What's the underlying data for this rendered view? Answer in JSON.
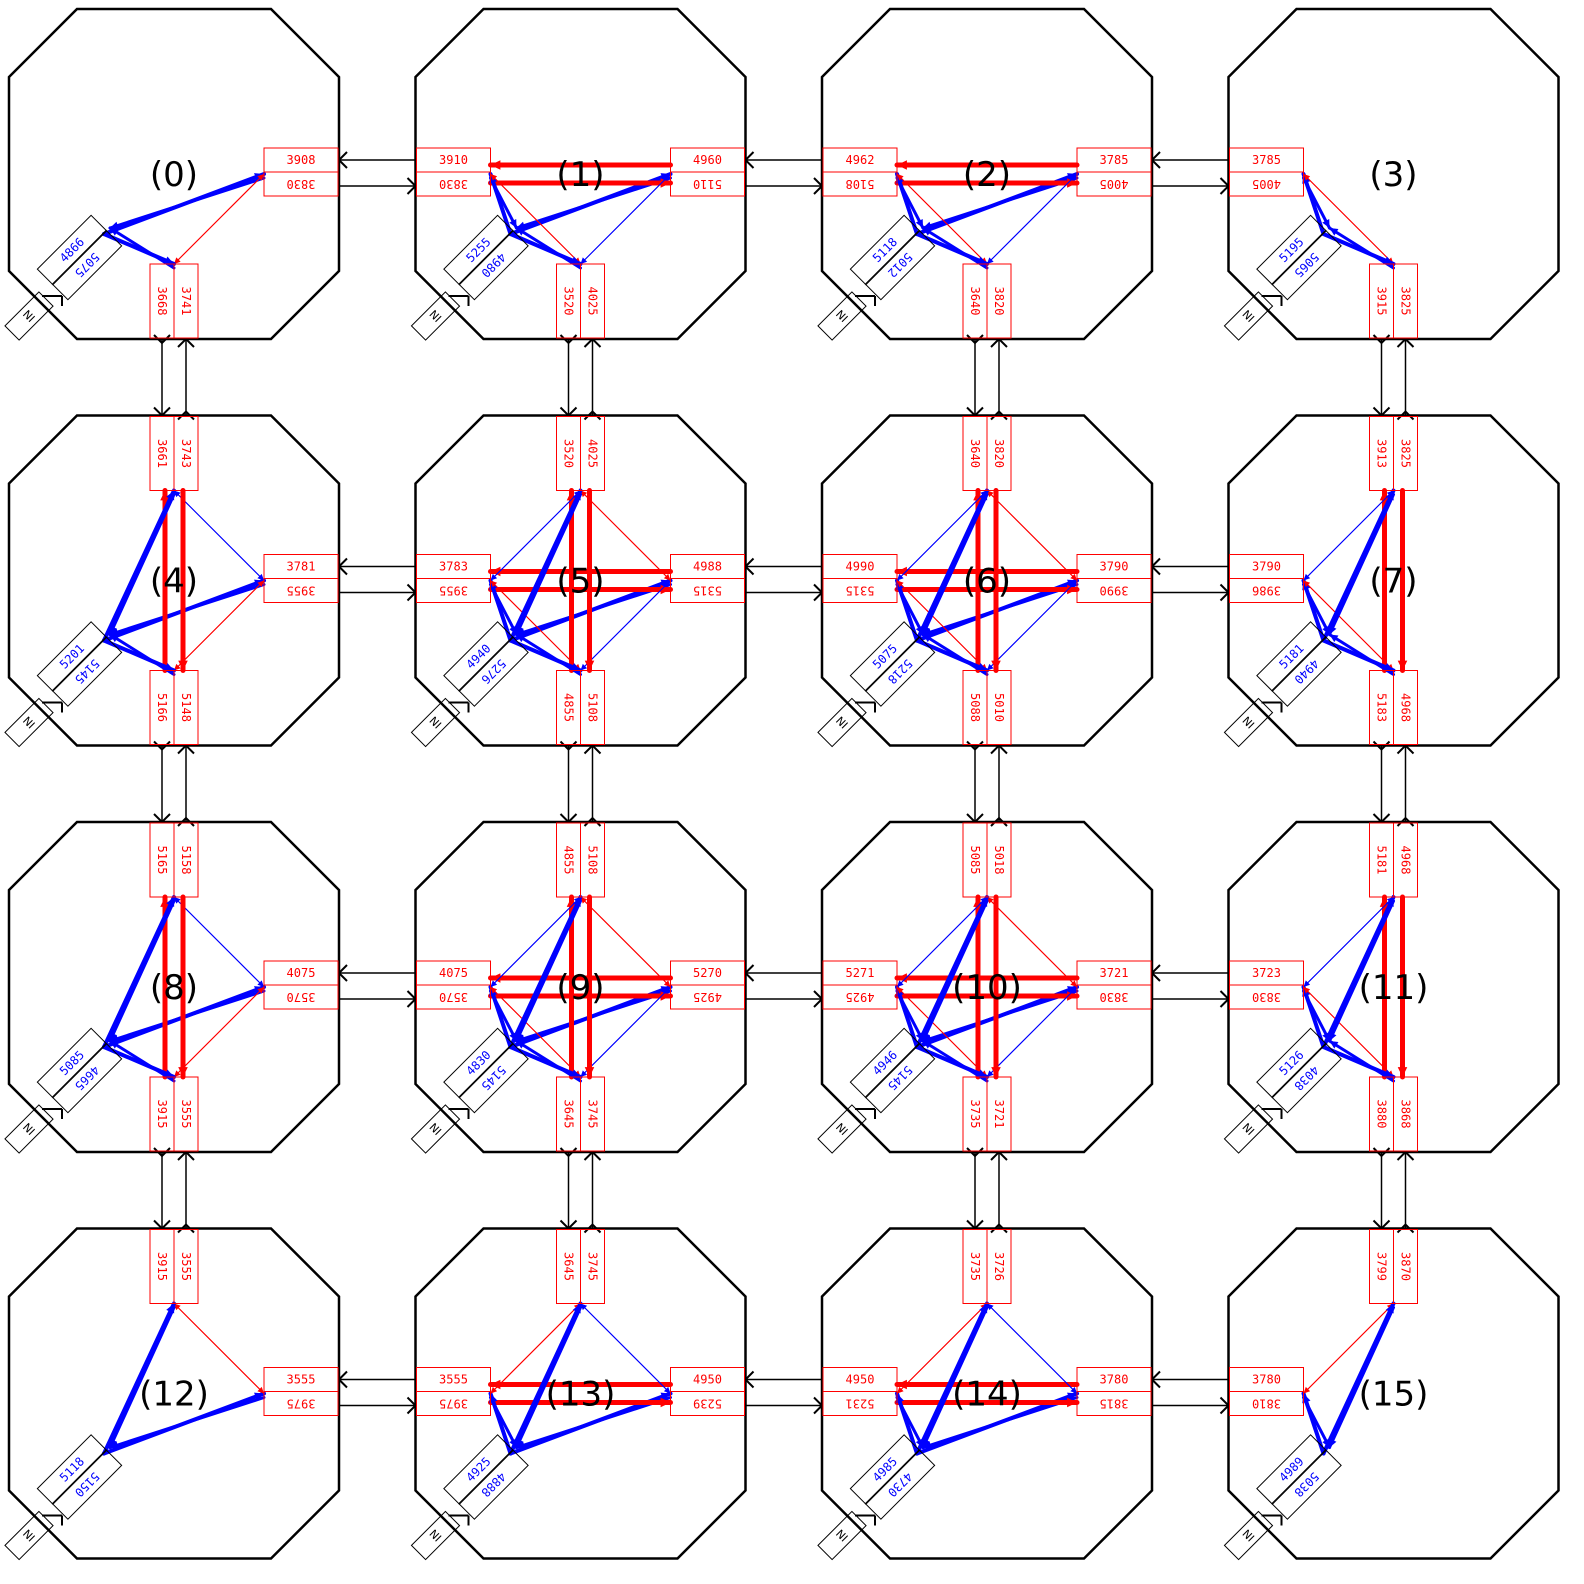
{
  "grid": {
    "rows": 4,
    "cols": 4
  },
  "routers": [
    {
      "id": 0,
      "label": "(0)",
      "east": [
        "3908",
        "3830"
      ],
      "south": [
        "3668",
        "3741"
      ],
      "local": [
        "4866",
        "5075"
      ],
      "north": null,
      "west": null
    },
    {
      "id": 1,
      "label": "(1)",
      "west": [
        "3910",
        "3830"
      ],
      "east": [
        "4960",
        "5110"
      ],
      "south": [
        "3520",
        "4025"
      ],
      "local": [
        "5255",
        "4980"
      ],
      "north": null
    },
    {
      "id": 2,
      "label": "(2)",
      "west": [
        "4962",
        "5108"
      ],
      "east": [
        "3785",
        "4005"
      ],
      "south": [
        "3640",
        "3820"
      ],
      "local": [
        "5118",
        "5012"
      ],
      "north": null
    },
    {
      "id": 3,
      "label": "(3)",
      "west": [
        "3785",
        "4005"
      ],
      "south": [
        "3915",
        "3825"
      ],
      "local": [
        "5195",
        "5065"
      ],
      "north": null,
      "east": null
    },
    {
      "id": 4,
      "label": "(4)",
      "north": [
        "3661",
        "3743"
      ],
      "east": [
        "3781",
        "3955"
      ],
      "south": [
        "5166",
        "5148"
      ],
      "local": [
        "5201",
        "5145"
      ],
      "west": null
    },
    {
      "id": 5,
      "label": "(5)",
      "north": [
        "3520",
        "4025"
      ],
      "west": [
        "3783",
        "3955"
      ],
      "east": [
        "4988",
        "5315"
      ],
      "south": [
        "4855",
        "5108"
      ],
      "local": [
        "4940",
        "5276"
      ]
    },
    {
      "id": 6,
      "label": "(6)",
      "north": [
        "3640",
        "3820"
      ],
      "west": [
        "4990",
        "5315"
      ],
      "east": [
        "3790",
        "3990"
      ],
      "south": [
        "5088",
        "5010"
      ],
      "local": [
        "5075",
        "5218"
      ]
    },
    {
      "id": 7,
      "label": "(7)",
      "north": [
        "3913",
        "3825"
      ],
      "west": [
        "3790",
        "3986"
      ],
      "south": [
        "5183",
        "4968"
      ],
      "local": [
        "5181",
        "4940"
      ],
      "east": null
    },
    {
      "id": 8,
      "label": "(8)",
      "north": [
        "5165",
        "5158"
      ],
      "east": [
        "4075",
        "3570"
      ],
      "south": [
        "3915",
        "3555"
      ],
      "local": [
        "5085",
        "4665"
      ],
      "west": null
    },
    {
      "id": 9,
      "label": "(9)",
      "north": [
        "4855",
        "5108"
      ],
      "west": [
        "4075",
        "3570"
      ],
      "east": [
        "5270",
        "4925"
      ],
      "south": [
        "3645",
        "3745"
      ],
      "local": [
        "4830",
        "5145"
      ]
    },
    {
      "id": 10,
      "label": "(10)",
      "north": [
        "5085",
        "5018"
      ],
      "west": [
        "5271",
        "4925"
      ],
      "east": [
        "3721",
        "3830"
      ],
      "south": [
        "3735",
        "3721"
      ],
      "local": [
        "4946",
        "5145"
      ]
    },
    {
      "id": 11,
      "label": "(11)",
      "north": [
        "5181",
        "4968"
      ],
      "west": [
        "3723",
        "3830"
      ],
      "south": [
        "3880",
        "3868"
      ],
      "local": [
        "5126",
        "4038"
      ],
      "east": null
    },
    {
      "id": 12,
      "label": "(12)",
      "north": [
        "3915",
        "3555"
      ],
      "east": [
        "3555",
        "3975"
      ],
      "local": [
        "5118",
        "5150"
      ],
      "south": null,
      "west": null
    },
    {
      "id": 13,
      "label": "(13)",
      "north": [
        "3645",
        "3745"
      ],
      "west": [
        "3555",
        "3975"
      ],
      "east": [
        "4950",
        "5239"
      ],
      "local": [
        "4925",
        "4888"
      ],
      "south": null
    },
    {
      "id": 14,
      "label": "(14)",
      "north": [
        "3735",
        "3726"
      ],
      "west": [
        "4950",
        "5231"
      ],
      "east": [
        "3780",
        "3815"
      ],
      "local": [
        "4985",
        "4730"
      ],
      "south": null
    },
    {
      "id": 15,
      "label": "(15)",
      "north": [
        "3799",
        "3870"
      ],
      "west": [
        "3780",
        "3810"
      ],
      "local": [
        "4989",
        "5038"
      ],
      "south": null,
      "east": null
    }
  ],
  "local_port_label": "NI",
  "colors": {
    "outline": "#000000",
    "port_box": "#ff0000",
    "port_text": "#ff0000",
    "flow_red": "#ff0000",
    "flow_blue": "#0000ff",
    "link": "#000000"
  }
}
